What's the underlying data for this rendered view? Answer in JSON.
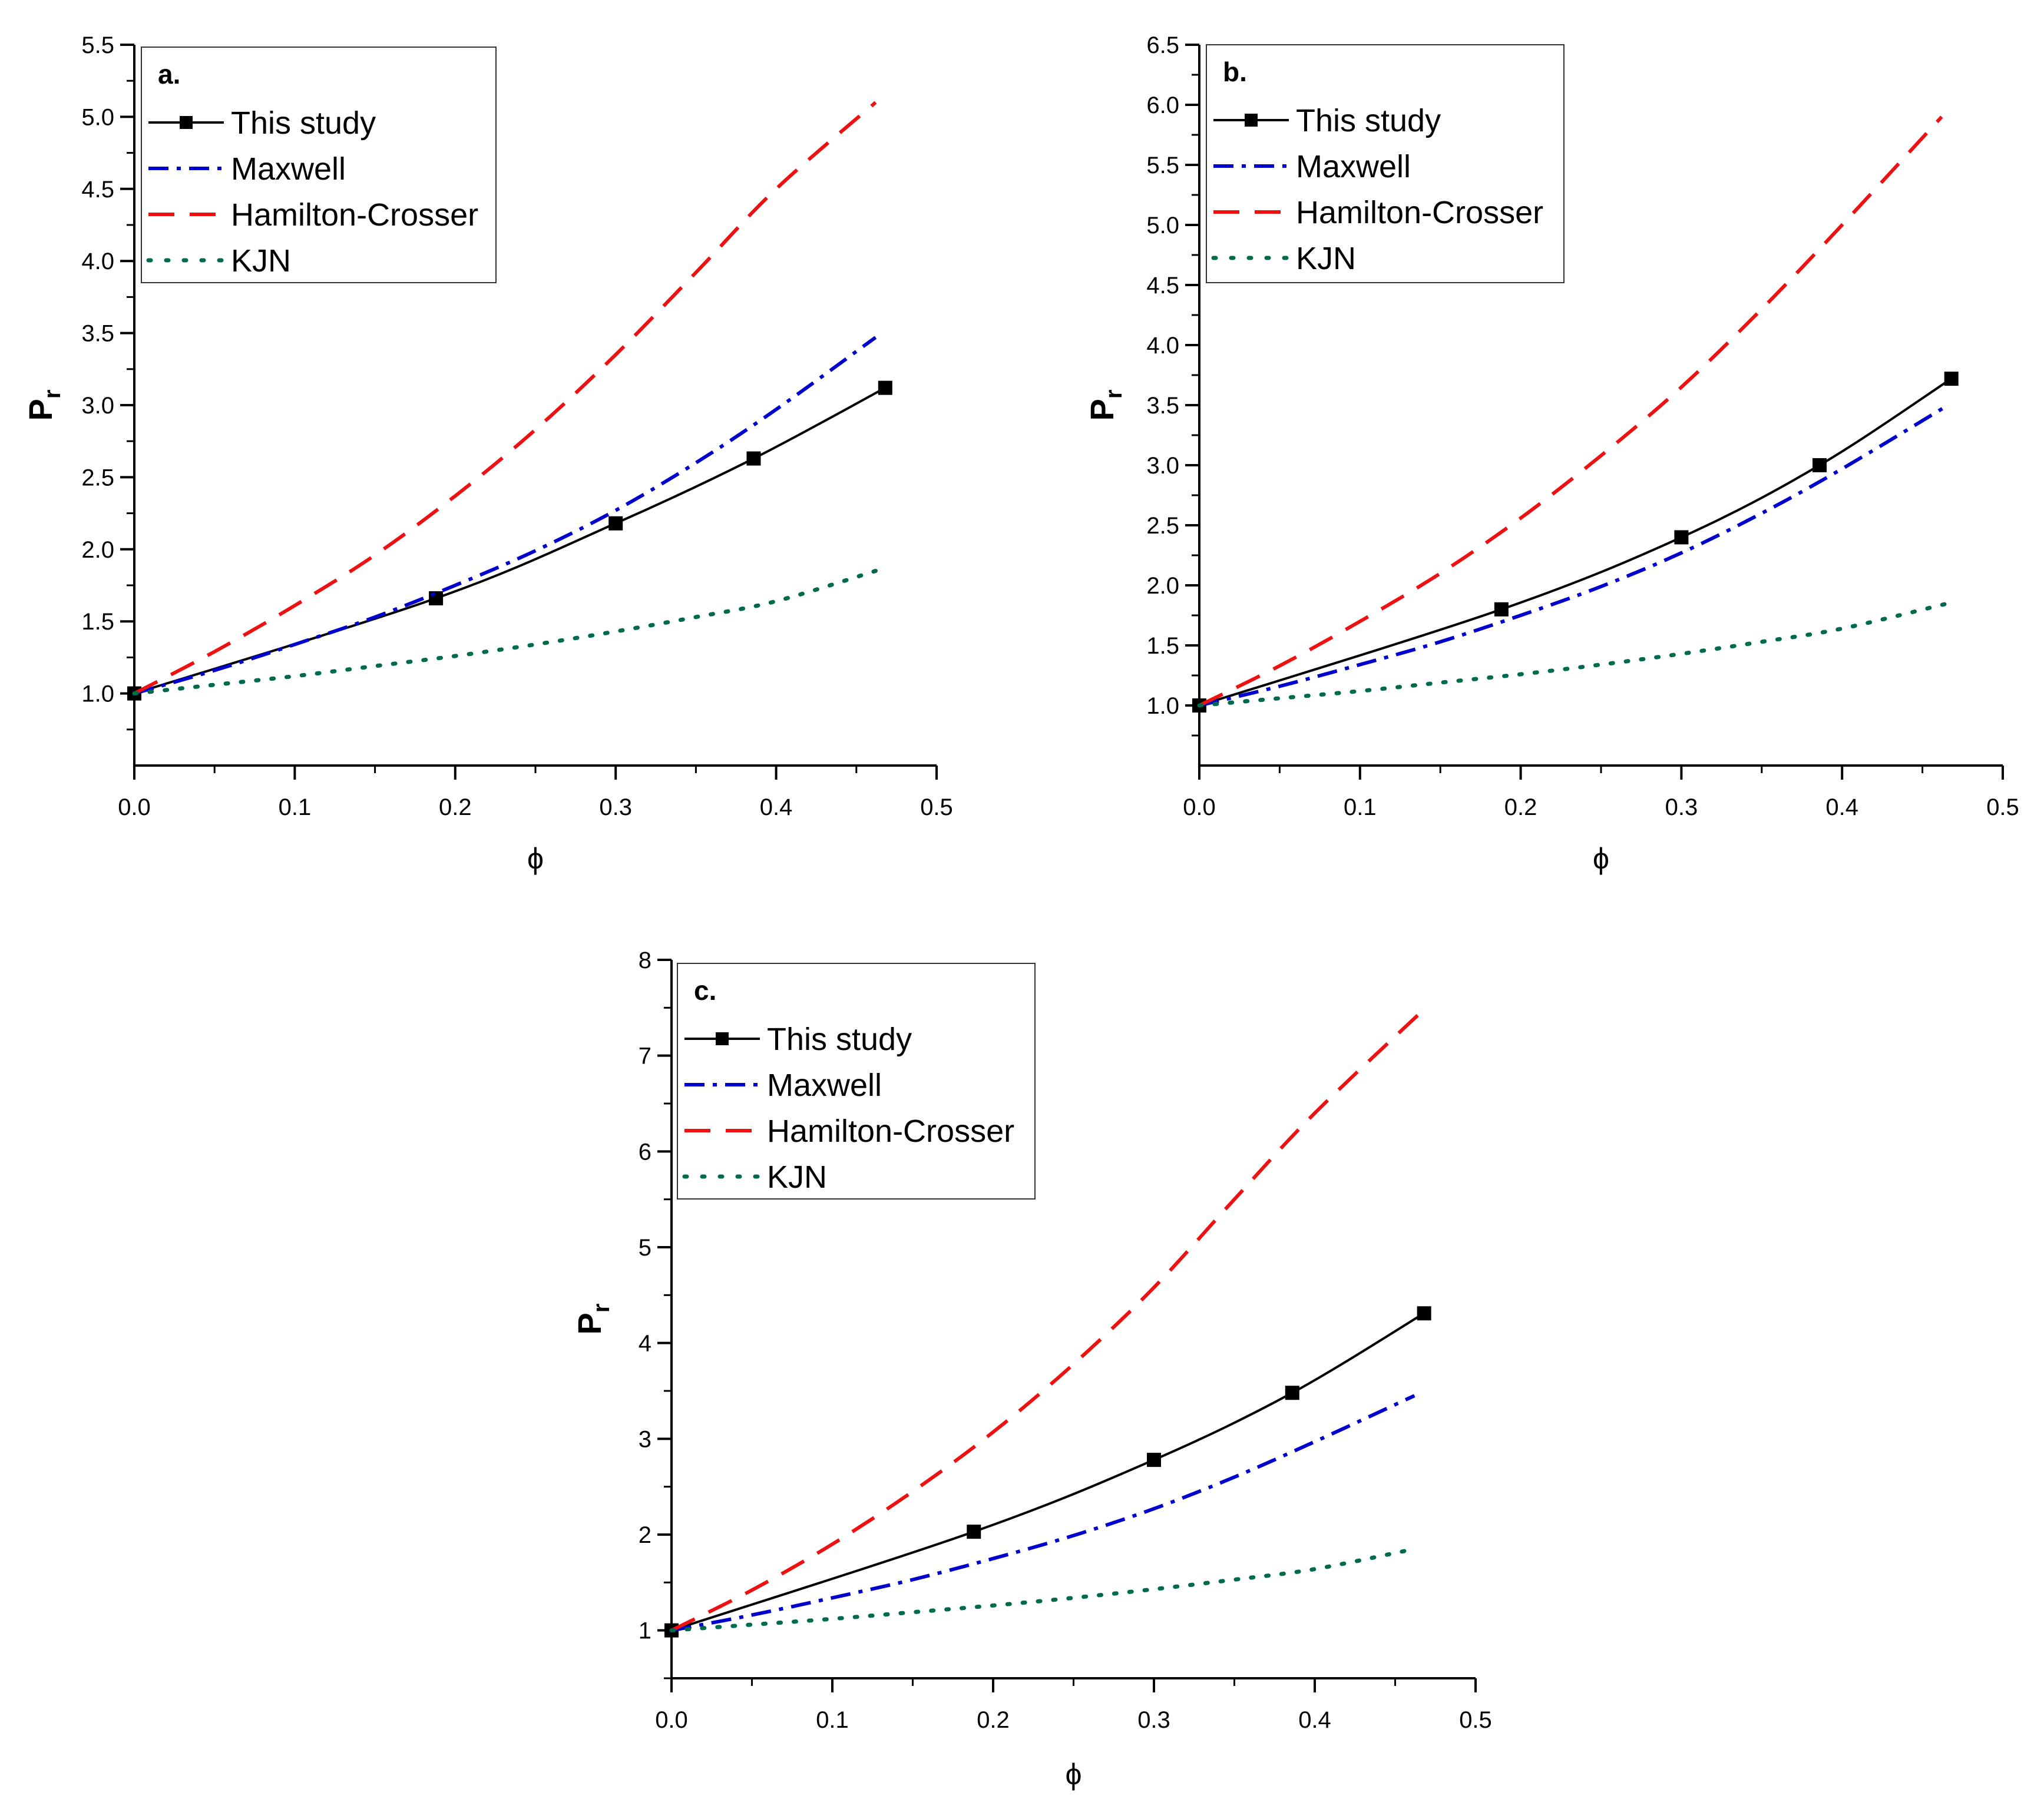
{
  "chart_data": [
    {
      "type": "line",
      "panel_label": "a.",
      "xlabel": "ϕ",
      "ylabel": {
        "main": "P",
        "sub": "r"
      },
      "xlim": [
        0.0,
        0.5
      ],
      "ylim": [
        0.5,
        5.5
      ],
      "xticks": [
        0.0,
        0.1,
        0.2,
        0.3,
        0.4,
        0.5
      ],
      "xtick_labels": [
        "0.0",
        "0.1",
        "0.2",
        "0.3",
        "0.4",
        "0.5"
      ],
      "yticks": [
        1.0,
        1.5,
        2.0,
        2.5,
        3.0,
        3.5,
        4.0,
        4.5,
        5.0,
        5.5
      ],
      "ytick_labels": [
        "1.0",
        "1.5",
        "2.0",
        "2.5",
        "3.0",
        "3.5",
        "4.0",
        "4.5",
        "5.0",
        "5.5"
      ],
      "series": [
        {
          "name": "This study",
          "style": "solid-square",
          "color": "#000000",
          "x": [
            0.0,
            0.188,
            0.3,
            0.386,
            0.468
          ],
          "y": [
            1.0,
            1.66,
            2.18,
            2.63,
            3.12
          ]
        },
        {
          "name": "Maxwell",
          "style": "dashdot",
          "color": "#0000cc",
          "x": [
            0.0,
            0.05,
            0.1,
            0.15,
            0.2,
            0.25,
            0.3,
            0.35,
            0.4,
            0.462
          ],
          "y": [
            1.0,
            1.16,
            1.34,
            1.53,
            1.75,
            1.99,
            2.27,
            2.6,
            2.97,
            3.47
          ]
        },
        {
          "name": "Hamilton-Crosser",
          "style": "dash",
          "color": "#ee1111",
          "x": [
            0.0,
            0.05,
            0.1,
            0.15,
            0.2,
            0.25,
            0.3,
            0.35,
            0.4,
            0.462
          ],
          "y": [
            1.0,
            1.29,
            1.61,
            1.96,
            2.37,
            2.83,
            3.35,
            3.92,
            4.5,
            5.1
          ]
        },
        {
          "name": "KJN",
          "style": "dot",
          "color": "#006a4e",
          "x": [
            0.0,
            0.05,
            0.1,
            0.15,
            0.2,
            0.25,
            0.3,
            0.35,
            0.4,
            0.462
          ],
          "y": [
            1.0,
            1.06,
            1.12,
            1.19,
            1.26,
            1.34,
            1.43,
            1.53,
            1.64,
            1.85
          ]
        }
      ]
    },
    {
      "type": "line",
      "panel_label": "b.",
      "xlabel": "ϕ",
      "ylabel": {
        "main": "P",
        "sub": "r"
      },
      "xlim": [
        0.0,
        0.5
      ],
      "ylim": [
        0.5,
        6.5
      ],
      "xticks": [
        0.0,
        0.1,
        0.2,
        0.3,
        0.4,
        0.5
      ],
      "xtick_labels": [
        "0.0",
        "0.1",
        "0.2",
        "0.3",
        "0.4",
        "0.5"
      ],
      "yticks": [
        1.0,
        1.5,
        2.0,
        2.5,
        3.0,
        3.5,
        4.0,
        4.5,
        5.0,
        5.5,
        6.0,
        6.5
      ],
      "ytick_labels": [
        "1.0",
        "1.5",
        "2.0",
        "2.5",
        "3.0",
        "3.5",
        "4.0",
        "4.5",
        "5.0",
        "5.5",
        "6.0",
        "6.5"
      ],
      "series": [
        {
          "name": "This study",
          "style": "solid-square",
          "color": "#000000",
          "x": [
            0.0,
            0.188,
            0.3,
            0.386,
            0.468
          ],
          "y": [
            1.0,
            1.8,
            2.4,
            3.0,
            3.72
          ]
        },
        {
          "name": "Maxwell",
          "style": "dashdot",
          "color": "#0000cc",
          "x": [
            0.0,
            0.05,
            0.1,
            0.15,
            0.2,
            0.25,
            0.3,
            0.35,
            0.4,
            0.466
          ],
          "y": [
            1.0,
            1.16,
            1.34,
            1.53,
            1.75,
            1.99,
            2.27,
            2.6,
            2.97,
            3.5
          ]
        },
        {
          "name": "Hamilton-Crosser",
          "style": "dash",
          "color": "#ee1111",
          "x": [
            0.0,
            0.05,
            0.1,
            0.15,
            0.2,
            0.25,
            0.3,
            0.35,
            0.4,
            0.462
          ],
          "y": [
            1.0,
            1.33,
            1.7,
            2.1,
            2.56,
            3.08,
            3.65,
            4.3,
            5.0,
            5.9
          ]
        },
        {
          "name": "KJN",
          "style": "dot",
          "color": "#006a4e",
          "x": [
            0.0,
            0.05,
            0.1,
            0.15,
            0.2,
            0.25,
            0.3,
            0.35,
            0.4,
            0.466
          ],
          "y": [
            1.0,
            1.06,
            1.12,
            1.19,
            1.26,
            1.34,
            1.43,
            1.53,
            1.64,
            1.85
          ]
        }
      ]
    },
    {
      "type": "line",
      "panel_label": "c.",
      "xlabel": "ϕ",
      "ylabel": {
        "main": "P",
        "sub": "r"
      },
      "xlim": [
        0.0,
        0.5
      ],
      "ylim": [
        0.5,
        8.0
      ],
      "xticks": [
        0.0,
        0.1,
        0.2,
        0.3,
        0.4,
        0.5
      ],
      "xtick_labels": [
        "0.0",
        "0.1",
        "0.2",
        "0.3",
        "0.4",
        "0.5"
      ],
      "yticks": [
        1,
        2,
        3,
        4,
        5,
        6,
        7,
        8
      ],
      "ytick_labels": [
        "1",
        "2",
        "3",
        "4",
        "5",
        "6",
        "7",
        "8"
      ],
      "series": [
        {
          "name": "This study",
          "style": "solid-square",
          "color": "#000000",
          "x": [
            0.0,
            0.188,
            0.3,
            0.386,
            0.468
          ],
          "y": [
            1.0,
            2.03,
            2.78,
            3.48,
            4.31
          ]
        },
        {
          "name": "Maxwell",
          "style": "dashdot",
          "color": "#0000cc",
          "x": [
            0.0,
            0.05,
            0.1,
            0.15,
            0.2,
            0.25,
            0.3,
            0.35,
            0.4,
            0.462
          ],
          "y": [
            1.0,
            1.16,
            1.34,
            1.53,
            1.75,
            1.99,
            2.27,
            2.6,
            2.97,
            3.45
          ]
        },
        {
          "name": "Hamilton-Crosser",
          "style": "dash",
          "color": "#ee1111",
          "x": [
            0.0,
            0.05,
            0.1,
            0.15,
            0.2,
            0.25,
            0.3,
            0.35,
            0.4,
            0.469
          ],
          "y": [
            1.0,
            1.42,
            1.9,
            2.45,
            3.07,
            3.78,
            4.58,
            5.5,
            6.4,
            7.5
          ]
        },
        {
          "name": "KJN",
          "style": "dot",
          "color": "#006a4e",
          "x": [
            0.0,
            0.05,
            0.1,
            0.15,
            0.2,
            0.25,
            0.3,
            0.35,
            0.4,
            0.462
          ],
          "y": [
            1.0,
            1.06,
            1.12,
            1.19,
            1.26,
            1.34,
            1.43,
            1.53,
            1.64,
            1.85
          ]
        }
      ]
    }
  ]
}
